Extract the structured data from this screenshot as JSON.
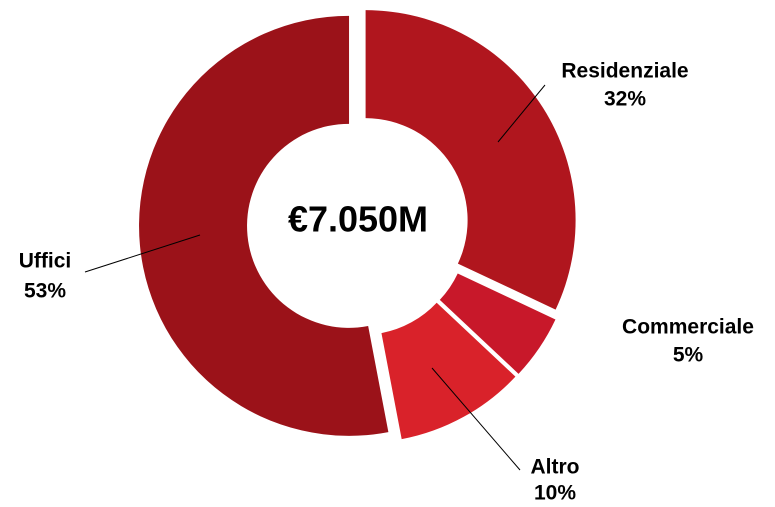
{
  "chart_data": {
    "type": "donut",
    "center_label": "€7.050M",
    "categories": [
      "Residenziale",
      "Commerciale",
      "Altro",
      "Uffici"
    ],
    "values": [
      32,
      5,
      10,
      53
    ],
    "value_labels": [
      "32%",
      "5%",
      "10%",
      "53%"
    ],
    "colors": [
      "#b0161e",
      "#c8182a",
      "#d9222a",
      "#9b1219"
    ]
  }
}
